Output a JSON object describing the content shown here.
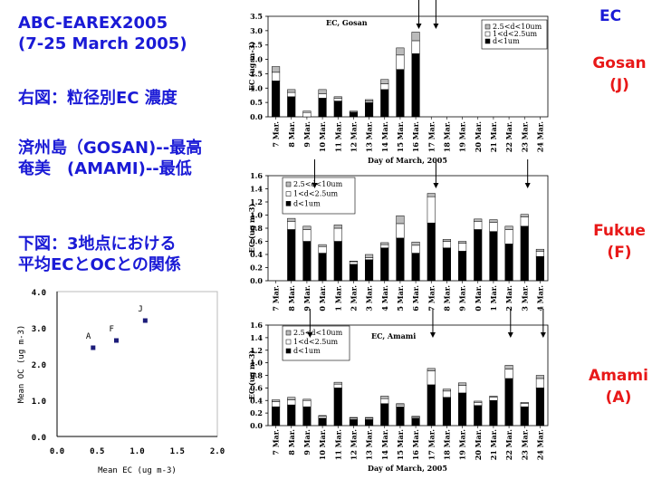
{
  "left_text": {
    "title1": "ABC-EAREX2005",
    "title2": "(7-25 March 2005)",
    "line3": "右図：粒径別EC 濃度",
    "line4": "済州島（GOSAN)--最高",
    "line5": "奄美　(AMAMI)--最低",
    "line6": "下図：3地点における",
    "line7": "平均ECとOCとの関係"
  },
  "site_labels": {
    "header": "EC",
    "gosan_name": "Gosan",
    "gosan_code": "(J)",
    "fukue_name": "Fukue",
    "fukue_code": "(F)",
    "amami_name": "Amami",
    "amami_code": "(A)"
  },
  "chart_data": [
    {
      "id": "gosan",
      "type": "bar",
      "stacked": true,
      "title": "EC, Gosan",
      "xlabel": "Day of March, 2005",
      "ylabel": "EC (ug m-3)",
      "ylim": [
        0,
        3.5
      ],
      "yticks": [
        "0.0",
        "0.5",
        "1.0",
        "1.5",
        "2.0",
        "2.5",
        "3.0",
        "3.5"
      ],
      "categories": [
        "7 Mar.",
        "8 Mar.",
        "9 Mar.",
        "10 Mar.",
        "11 Mar.",
        "12 Mar.",
        "13 Mar.",
        "14 Mar.",
        "15 Mar.",
        "16 Mar.",
        "17 Mar.",
        "18 Mar.",
        "19 Mar.",
        "20 Mar.",
        "21 Mar.",
        "22 Mar.",
        "23 Mar.",
        "24 Mar."
      ],
      "series": [
        {
          "name": "d<1um",
          "color": "#000000",
          "values": [
            1.25,
            0.7,
            0.0,
            0.65,
            0.55,
            0.15,
            0.5,
            0.95,
            1.65,
            2.2,
            0,
            0,
            0,
            0,
            0,
            0,
            0,
            0
          ]
        },
        {
          "name": "1<d<2.5um",
          "color": "#ffffff",
          "values": [
            0.3,
            0.15,
            0.15,
            0.15,
            0.1,
            0.03,
            0.05,
            0.2,
            0.5,
            0.45,
            0,
            0,
            0,
            0,
            0,
            0,
            0,
            0
          ]
        },
        {
          "name": "2.5<d<10um",
          "color": "#bbbbbb",
          "values": [
            0.2,
            0.1,
            0.05,
            0.15,
            0.05,
            0.02,
            0.05,
            0.15,
            0.25,
            0.3,
            0,
            0,
            0,
            0,
            0,
            0,
            0,
            0
          ]
        }
      ],
      "legend": [
        "2.5<d<10um",
        "1<d<2.5um",
        "d<1um"
      ],
      "arrows_at": [
        9.2,
        10.3
      ]
    },
    {
      "id": "fukue",
      "type": "bar",
      "stacked": true,
      "title": "",
      "xlabel": "",
      "ylabel": "EC (ug m-3)",
      "ylim": [
        0,
        1.6
      ],
      "yticks": [
        "0.0",
        "0.2",
        "0.4",
        "0.6",
        "0.8",
        "1.0",
        "1.2",
        "1.4",
        "1.6"
      ],
      "categories": [
        "7 Mar.",
        "8 Mar.",
        "9 Mar.",
        "0 Mar.",
        "1 Mar.",
        "2 Mar.",
        "3 Mar.",
        "4 Mar.",
        "5 Mar.",
        "6 Mar.",
        "7 Mar.",
        "8 Mar.",
        "9 Mar.",
        "0 Mar.",
        "1 Mar.",
        "2 Mar.",
        "3 Mar.",
        "4 Mar."
      ],
      "series": [
        {
          "name": "d<1um",
          "color": "#000000",
          "values": [
            0,
            0.78,
            0.6,
            0.42,
            0.6,
            0.25,
            0.32,
            0.5,
            0.65,
            0.42,
            0.88,
            0.5,
            0.45,
            0.78,
            0.75,
            0.56,
            0.83,
            0.37
          ]
        },
        {
          "name": "1<d<2.5um",
          "color": "#ffffff",
          "values": [
            0,
            0.12,
            0.18,
            0.1,
            0.2,
            0.04,
            0.03,
            0.05,
            0.22,
            0.12,
            0.4,
            0.1,
            0.12,
            0.12,
            0.14,
            0.22,
            0.14,
            0.08
          ]
        },
        {
          "name": "2.5<d<10um",
          "color": "#bbbbbb",
          "values": [
            0,
            0.05,
            0.05,
            0.03,
            0.05,
            0.01,
            0.05,
            0.03,
            0.12,
            0.05,
            0.05,
            0.03,
            0.03,
            0.04,
            0.04,
            0.05,
            0.04,
            0.03
          ]
        }
      ],
      "legend": [
        "2.5<d<10um",
        "1<d<2.5um",
        "d<1um"
      ],
      "arrows_at": [
        2.5,
        10.3,
        16.2
      ]
    },
    {
      "id": "amami",
      "type": "bar",
      "stacked": true,
      "title": "EC, Amami",
      "xlabel": "Day of March, 2005",
      "ylabel": "EC (ug m-3)",
      "ylim": [
        0,
        1.6
      ],
      "yticks": [
        "0.0",
        "0.2",
        "0.4",
        "0.6",
        "0.8",
        "1.0",
        "1.2",
        "1.4",
        "1.6"
      ],
      "categories": [
        "7 Mar.",
        "8 Mar.",
        "9 Mar.",
        "10 Mar.",
        "11 Mar.",
        "12 Mar.",
        "13 Mar.",
        "14 Mar.",
        "15 Mar.",
        "16 Mar.",
        "17 Mar.",
        "18 Mar.",
        "19 Mar.",
        "20 Mar.",
        "21 Mar.",
        "22 Mar.",
        "23 Mar.",
        "24 Mar."
      ],
      "series": [
        {
          "name": "d<1um",
          "color": "#000000",
          "values": [
            0.3,
            0.33,
            0.3,
            0.12,
            0.6,
            0.1,
            0.1,
            0.35,
            0.3,
            0.12,
            0.65,
            0.45,
            0.52,
            0.32,
            0.4,
            0.75,
            0.3,
            0.6
          ]
        },
        {
          "name": "1<d<2.5um",
          "color": "#ffffff",
          "values": [
            0.08,
            0.08,
            0.1,
            0.03,
            0.06,
            0.02,
            0.02,
            0.08,
            0.03,
            0.02,
            0.22,
            0.1,
            0.12,
            0.05,
            0.05,
            0.15,
            0.05,
            0.15
          ]
        },
        {
          "name": "2.5<d<10um",
          "color": "#bbbbbb",
          "values": [
            0.03,
            0.04,
            0.02,
            0.01,
            0.03,
            0.01,
            0.01,
            0.04,
            0.02,
            0.01,
            0.04,
            0.03,
            0.04,
            0.02,
            0.02,
            0.06,
            0.02,
            0.05
          ]
        }
      ],
      "legend": [
        "2.5<d<10um",
        "1<d<2.5um",
        "d<1um"
      ],
      "arrows_at": [
        2.2,
        10.1,
        15.1,
        17.2
      ]
    },
    {
      "id": "scatter",
      "type": "scatter",
      "title": "",
      "xlabel": "Mean EC (ug m-3)",
      "ylabel": "Mean OC (ug m-3)",
      "xlim": [
        0,
        2.0
      ],
      "ylim": [
        0,
        4.0
      ],
      "xticks": [
        "0.0",
        "0.5",
        "1.0",
        "1.5",
        "2.0"
      ],
      "yticks": [
        "0.0",
        "1.0",
        "2.0",
        "3.0",
        "4.0"
      ],
      "points": [
        {
          "label": "A",
          "x": 0.45,
          "y": 2.45
        },
        {
          "label": "F",
          "x": 0.74,
          "y": 2.65
        },
        {
          "label": "J",
          "x": 1.1,
          "y": 3.2
        }
      ],
      "point_color": "#1c1c7a"
    }
  ]
}
